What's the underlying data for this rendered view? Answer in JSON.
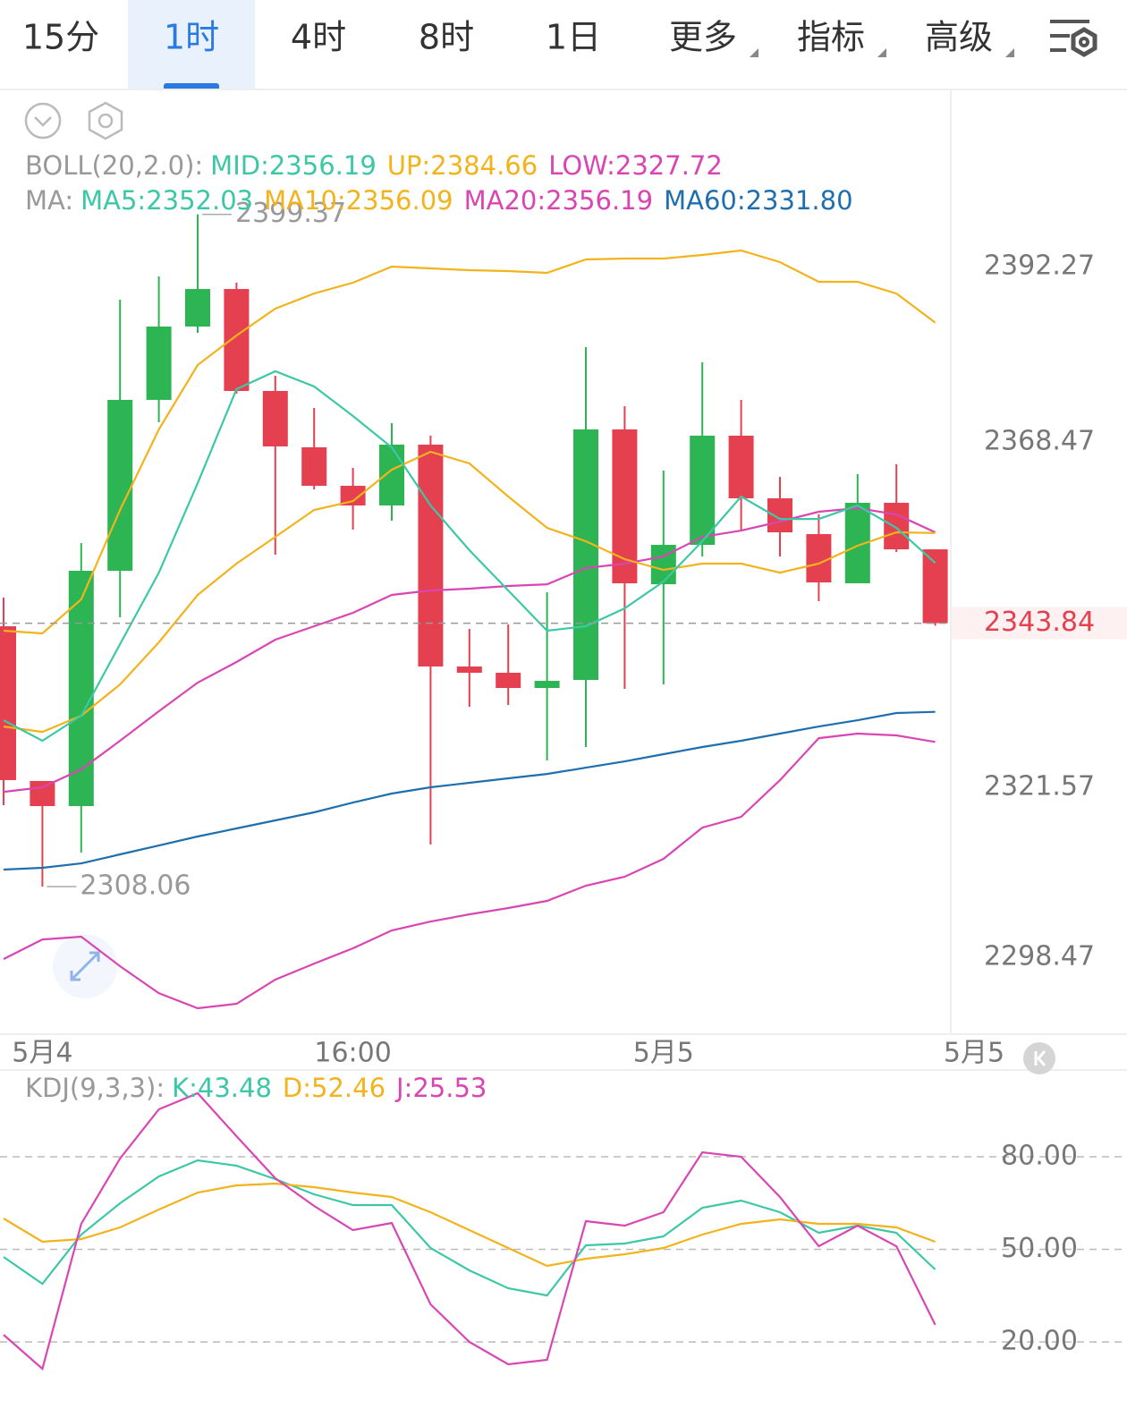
{
  "tabs": [
    {
      "label": "15分"
    },
    {
      "label": "1时",
      "selected": true
    },
    {
      "label": "4时"
    },
    {
      "label": "8时"
    },
    {
      "label": "1日"
    },
    {
      "label": "更多",
      "menu": true
    },
    {
      "label": "指标",
      "menu": true
    },
    {
      "label": "高级",
      "menu": true
    }
  ],
  "chart_data": [
    {
      "type": "candlestick",
      "categories": [
        null,
        "5月4",
        null,
        null,
        null,
        null,
        null,
        null,
        null,
        "16:00",
        null,
        null,
        null,
        null,
        null,
        null,
        null,
        "5月5",
        null,
        null,
        null,
        null,
        null,
        null,
        null,
        "5月5"
      ],
      "open": [
        2343.42,
        2322.41,
        2319.0,
        2350.96,
        2374.17,
        2384.13,
        2389.23,
        2375.38,
        2367.73,
        2362.5,
        2359.83,
        2368.09,
        2337.96,
        2337.11,
        2335.04,
        2336.13,
        2370.16,
        2349.13,
        2354.48,
        2369.31,
        2360.8,
        2355.94,
        2349.26,
        2360.19,
        2353.87,
        null
      ],
      "high": [
        2347.31,
        2322.41,
        2354.72,
        2387.77,
        2390.93,
        2399.37,
        2390.08,
        2377.45,
        2373.07,
        2364.93,
        2371.01,
        2369.31,
        2343.06,
        2343.67,
        2348.04,
        2381.33,
        2373.31,
        2364.57,
        2379.27,
        2374.17,
        2363.72,
        2358.61,
        2364.08,
        2365.42,
        2353.87,
        null
      ],
      "low": [
        2319.12,
        2308.06,
        2312.68,
        2344.64,
        2371.13,
        2383.28,
        2375.02,
        2353.15,
        2362.01,
        2356.55,
        2357.76,
        2313.78,
        2332.49,
        2332.73,
        2325.2,
        2327.02,
        2334.92,
        2335.53,
        2352.9,
        2356.43,
        2352.9,
        2346.83,
        2349.26,
        2353.51,
        2343.5,
        null
      ],
      "close": [
        2322.53,
        2319.0,
        2350.96,
        2374.17,
        2384.13,
        2389.23,
        2375.38,
        2367.85,
        2362.5,
        2359.83,
        2368.09,
        2337.96,
        2337.11,
        2335.04,
        2336.01,
        2370.16,
        2349.26,
        2354.48,
        2369.31,
        2360.8,
        2356.18,
        2349.38,
        2360.19,
        2353.87,
        2343.84,
        null
      ],
      "up_color": "#2db553",
      "down_color": "#e5404f",
      "series": [
        {
          "color": "#f2b31c",
          "values": [
            2342.82,
            2342.45,
            2347.07,
            2359.22,
            2370.16,
            2378.9,
            2382.91,
            2386.56,
            2388.62,
            2390.08,
            2392.27,
            2392.03,
            2391.78,
            2391.66,
            2391.42,
            2393.24,
            2393.36,
            2393.36,
            2393.85,
            2394.46,
            2392.88,
            2390.2,
            2390.2,
            2388.62,
            2384.66,
            null
          ]
        },
        {
          "color": "#d946b4",
          "values": [
            2298.22,
            2300.89,
            2301.26,
            2297.25,
            2293.6,
            2291.54,
            2292.15,
            2295.43,
            2297.61,
            2299.68,
            2302.11,
            2303.32,
            2304.3,
            2305.15,
            2306.12,
            2308.19,
            2309.4,
            2311.83,
            2316.08,
            2317.54,
            2322.52,
            2328.23,
            2328.84,
            2328.6,
            2327.72,
            null
          ]
        },
        {
          "color": "#1f6fae",
          "values": [
            2310.37,
            2310.62,
            2311.22,
            2312.44,
            2313.65,
            2314.87,
            2315.96,
            2317.06,
            2318.15,
            2319.48,
            2320.7,
            2321.55,
            2322.16,
            2322.77,
            2323.37,
            2324.22,
            2325.07,
            2326.05,
            2327.02,
            2327.87,
            2328.84,
            2329.81,
            2330.66,
            2331.64,
            2331.8,
            null
          ]
        },
        {
          "color": "#d946b4",
          "values": [
            2320.94,
            2321.55,
            2323.98,
            2327.87,
            2331.88,
            2335.77,
            2338.56,
            2341.6,
            2343.42,
            2345.25,
            2347.68,
            2348.28,
            2348.53,
            2348.89,
            2349.13,
            2351.32,
            2351.93,
            2352.9,
            2355.57,
            2356.42,
            2357.64,
            2358.98,
            2359.46,
            2358.61,
            2356.19,
            null
          ]
        },
        {
          "color": "#f2b31c",
          "values": [
            2329.81,
            2329.08,
            2331.27,
            2335.52,
            2341.24,
            2347.68,
            2351.93,
            2355.57,
            2359.22,
            2360.43,
            2364.69,
            2367.12,
            2365.54,
            2361.04,
            2356.79,
            2354.97,
            2352.54,
            2351.08,
            2351.93,
            2351.93,
            2350.71,
            2351.93,
            2354.36,
            2356.18,
            2356.09,
            null
          ]
        },
        {
          "color": "#3cc8a6",
          "values": [
            2330.66,
            2327.87,
            2331.27,
            2340.99,
            2350.71,
            2362.86,
            2375.62,
            2378.05,
            2375.99,
            2371.98,
            2367.72,
            2359.83,
            2353.75,
            2348.28,
            2342.82,
            2343.42,
            2345.85,
            2349.5,
            2354.97,
            2361.04,
            2358.0,
            2358.0,
            2359.83,
            2356.79,
            2352.03,
            null
          ]
        }
      ],
      "ylim": [
        2288.14,
        2416.33
      ],
      "yticks": [
        2392.27,
        2368.47,
        2321.57,
        2298.47
      ],
      "legend": [
        {
          "label": "BOLL(20,2.0):",
          "items": [
            {
              "text": "MID:2356.19",
              "color": "#3cc8a6"
            },
            {
              "text": "UP:2384.66",
              "color": "#f2b31c"
            },
            {
              "text": "LOW:2327.72",
              "color": "#d946b4"
            }
          ]
        },
        {
          "label": "MA:",
          "items": [
            {
              "text": "MA5:2352.03",
              "color": "#3cc8a6"
            },
            {
              "text": "MA10:2356.09",
              "color": "#f2b31c"
            },
            {
              "text": "MA20:2356.19",
              "color": "#d946b4"
            },
            {
              "text": "MA60:2331.80",
              "color": "#1f6fae"
            }
          ]
        }
      ]
    },
    {
      "type": "line",
      "series": [
        {
          "color": "#3cc8a6",
          "values": [
            47.54,
            38.84,
            54.78,
            64.93,
            73.62,
            78.84,
            77.1,
            72.75,
            67.83,
            64.35,
            64.35,
            50.43,
            43.19,
            37.39,
            35.07,
            51.3,
            51.88,
            54.2,
            63.48,
            65.8,
            62.03,
            55.36,
            57.68,
            55.36,
            43.48,
            null
          ]
        },
        {
          "color": "#f2b31c",
          "values": [
            60.0,
            52.46,
            53.33,
            57.1,
            62.9,
            68.41,
            70.72,
            71.3,
            70.14,
            68.41,
            66.96,
            62.03,
            56.23,
            50.43,
            44.64,
            46.96,
            48.41,
            50.43,
            54.78,
            58.26,
            59.71,
            58.26,
            58.26,
            57.1,
            52.46,
            null
          ]
        },
        {
          "color": "#d946b4",
          "values": [
            22.32,
            11.3,
            58.26,
            79.42,
            95.36,
            100.58,
            86.67,
            73.04,
            64.06,
            56.23,
            58.55,
            32.17,
            20.0,
            12.75,
            14.2,
            59.13,
            57.68,
            62.03,
            81.45,
            80.0,
            66.96,
            51.01,
            57.68,
            51.01,
            25.53,
            null
          ]
        }
      ],
      "ylim": [
        2.61,
        106.96
      ],
      "yticks": [
        {
          "value": 80,
          "label": "80.00"
        },
        {
          "value": 50,
          "label": "50.00"
        },
        {
          "value": 20,
          "label": "20.00"
        }
      ],
      "grid": true,
      "legend": [
        {
          "label": "KDJ(9,3,3):",
          "items": [
            {
              "text": "K:43.48",
              "color": "#3cc8a6"
            },
            {
              "text": "D:52.46",
              "color": "#f2b31c"
            },
            {
              "text": "J:25.53",
              "color": "#d946b4"
            }
          ]
        }
      ]
    }
  ]
}
